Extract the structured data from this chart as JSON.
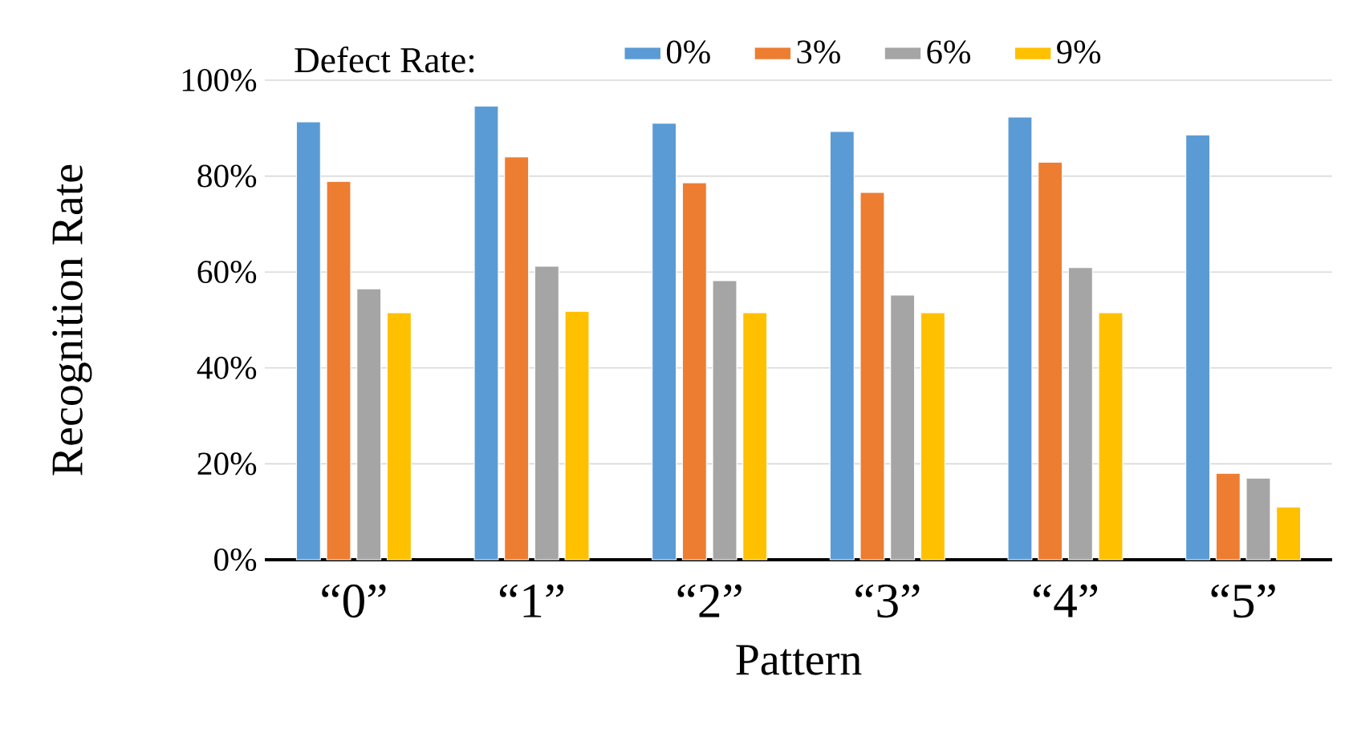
{
  "chart_data": {
    "type": "bar",
    "xlabel": "Pattern",
    "ylabel": "Recognition Rate",
    "legend_title": "Defect Rate:",
    "categories": [
      "“0”",
      "“1”",
      "“2”",
      "“3”",
      "“4”",
      "“5”"
    ],
    "series": [
      {
        "name": "0%",
        "color": "#5b9bd5",
        "values": [
          91.3,
          94.6,
          91,
          89.3,
          92.3,
          88.6
        ]
      },
      {
        "name": "3%",
        "color": "#ed7d31",
        "values": [
          78.9,
          84,
          78.6,
          76.6,
          82.9,
          18
        ]
      },
      {
        "name": "6%",
        "color": "#a5a5a5",
        "values": [
          56.5,
          61.2,
          58.2,
          55.2,
          60.9,
          17
        ]
      },
      {
        "name": "9%",
        "color": "#ffc000",
        "values": [
          51.5,
          51.8,
          51.5,
          51.5,
          51.5,
          11
        ]
      }
    ],
    "ylim": [
      0,
      100
    ],
    "yticks": [
      {
        "value": 0,
        "label": "0%"
      },
      {
        "value": 20,
        "label": "20%"
      },
      {
        "value": 40,
        "label": "40%"
      },
      {
        "value": 60,
        "label": "60%"
      },
      {
        "value": 80,
        "label": "80%"
      },
      {
        "value": 100,
        "label": "100%"
      }
    ],
    "grid": "y",
    "legend": "top"
  }
}
